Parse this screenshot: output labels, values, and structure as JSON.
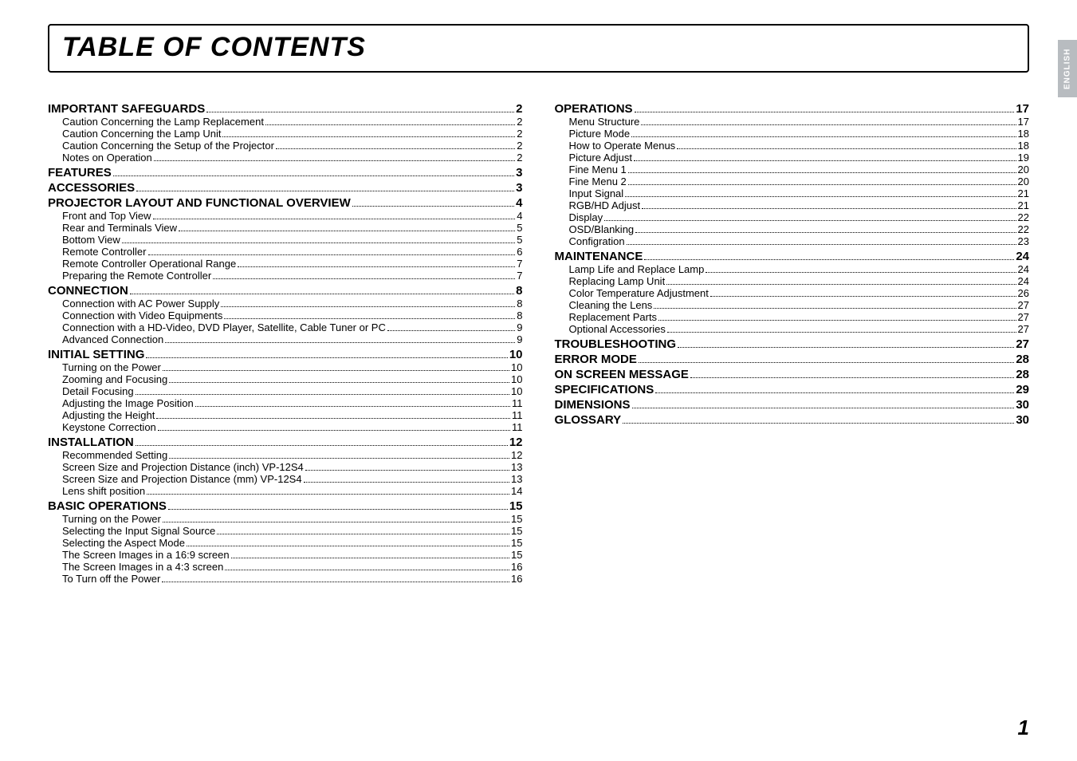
{
  "title": "TABLE OF CONTENTS",
  "side_tab": "ENGLISH",
  "page_number": "1",
  "left": [
    {
      "label": "IMPORTANT SAFEGUARDS",
      "page": "2",
      "bold": true,
      "sub": false
    },
    {
      "label": "Caution Concerning the Lamp Replacement",
      "page": "2",
      "sub": true
    },
    {
      "label": "Caution Concerning the Lamp Unit",
      "page": "2",
      "sub": true
    },
    {
      "label": "Caution Concerning the Setup of the Projector",
      "page": "2",
      "sub": true
    },
    {
      "label": "Notes on Operation",
      "page": "2",
      "sub": true
    },
    {
      "label": "FEATURES",
      "page": "3",
      "bold": true,
      "sub": false
    },
    {
      "label": "ACCESSORIES",
      "page": "3",
      "bold": true,
      "sub": false
    },
    {
      "label": "PROJECTOR LAYOUT AND FUNCTIONAL OVERVIEW",
      "page": "4",
      "bold": true,
      "sub": false
    },
    {
      "label": "Front and Top View",
      "page": "4",
      "sub": true
    },
    {
      "label": "Rear and Terminals View",
      "page": "5",
      "sub": true
    },
    {
      "label": "Bottom View",
      "page": "5",
      "sub": true
    },
    {
      "label": "Remote Controller",
      "page": "6",
      "sub": true
    },
    {
      "label": "Remote Controller Operational Range",
      "page": "7",
      "sub": true
    },
    {
      "label": "Preparing the Remote Controller",
      "page": "7",
      "sub": true
    },
    {
      "label": "CONNECTION",
      "page": "8",
      "bold": true,
      "sub": false
    },
    {
      "label": "Connection with AC Power Supply",
      "page": "8",
      "sub": true
    },
    {
      "label": "Connection with Video Equipments",
      "page": "8",
      "sub": true
    },
    {
      "label": "Connection with a HD-Video, DVD Player, Satellite, Cable Tuner or PC",
      "page": "9",
      "sub": true
    },
    {
      "label": "Advanced Connection",
      "page": "9",
      "sub": true
    },
    {
      "label": "INITIAL SETTING",
      "page": "10",
      "bold": true,
      "sub": false
    },
    {
      "label": "Turning on the Power",
      "page": "10",
      "sub": true
    },
    {
      "label": "Zooming and Focusing",
      "page": "10",
      "sub": true
    },
    {
      "label": "Detail Focusing",
      "page": "10",
      "sub": true
    },
    {
      "label": "Adjusting the Image Position",
      "page": "11",
      "sub": true
    },
    {
      "label": "Adjusting the Height",
      "page": "11",
      "sub": true
    },
    {
      "label": "Keystone Correction",
      "page": "11",
      "sub": true
    },
    {
      "label": "INSTALLATION",
      "page": "12",
      "bold": true,
      "sub": false
    },
    {
      "label": "Recommended Setting",
      "page": "12",
      "sub": true
    },
    {
      "label": "Screen Size and Projection Distance (inch)  VP-12S4",
      "page": "13",
      "sub": true
    },
    {
      "label": "Screen Size and Projection Distance (mm)  VP-12S4",
      "page": "13",
      "sub": true
    },
    {
      "label": "Lens shift position",
      "page": "14",
      "sub": true
    },
    {
      "label": "BASIC OPERATIONS",
      "page": "15",
      "bold": true,
      "sub": false
    },
    {
      "label": "Turning on the Power",
      "page": "15",
      "sub": true
    },
    {
      "label": "Selecting the Input Signal Source",
      "page": "15",
      "sub": true
    },
    {
      "label": "Selecting the Aspect Mode",
      "page": "15",
      "sub": true
    },
    {
      "label": "The Screen Images in a 16:9 screen",
      "page": "15",
      "sub": true
    },
    {
      "label": "The Screen Images in a 4:3 screen",
      "page": "16",
      "sub": true
    },
    {
      "label": "To Turn off the Power",
      "page": "16",
      "sub": true
    }
  ],
  "right": [
    {
      "label": "OPERATIONS",
      "page": "17",
      "bold": true,
      "sub": false
    },
    {
      "label": "Menu Structure",
      "page": "17",
      "sub": true
    },
    {
      "label": "Picture Mode",
      "page": "18",
      "sub": true
    },
    {
      "label": "How to Operate Menus",
      "page": "18",
      "sub": true
    },
    {
      "label": "Picture Adjust",
      "page": "19",
      "sub": true
    },
    {
      "label": "Fine Menu 1",
      "page": "20",
      "sub": true
    },
    {
      "label": "Fine Menu 2",
      "page": "20",
      "sub": true
    },
    {
      "label": "Input Signal",
      "page": "21",
      "sub": true
    },
    {
      "label": "RGB/HD Adjust",
      "page": "21",
      "sub": true
    },
    {
      "label": "Display",
      "page": "22",
      "sub": true
    },
    {
      "label": "OSD/Blanking",
      "page": "22",
      "sub": true
    },
    {
      "label": "Configration",
      "page": "23",
      "sub": true
    },
    {
      "label": "MAINTENANCE",
      "page": "24",
      "bold": true,
      "sub": false
    },
    {
      "label": "Lamp Life and Replace Lamp",
      "page": "24",
      "sub": true
    },
    {
      "label": "Replacing Lamp Unit",
      "page": "24",
      "sub": true
    },
    {
      "label": "Color Temperature Adjustment",
      "page": "26",
      "sub": true
    },
    {
      "label": "Cleaning the Lens",
      "page": "27",
      "sub": true
    },
    {
      "label": "Replacement Parts",
      "page": "27",
      "sub": true
    },
    {
      "label": "Optional Accessories",
      "page": "27",
      "sub": true
    },
    {
      "label": "TROUBLESHOOTING",
      "page": "27",
      "bold": true,
      "sub": false
    },
    {
      "label": "ERROR MODE",
      "page": "28",
      "bold": true,
      "sub": false
    },
    {
      "label": "ON SCREEN MESSAGE",
      "page": "28",
      "bold": true,
      "sub": false
    },
    {
      "label": "SPECIFICATIONS",
      "page": "29",
      "bold": true,
      "sub": false
    },
    {
      "label": "DIMENSIONS",
      "page": "30",
      "bold": true,
      "sub": false
    },
    {
      "label": "GLOSSARY",
      "page": "30",
      "bold": true,
      "sub": false
    }
  ]
}
